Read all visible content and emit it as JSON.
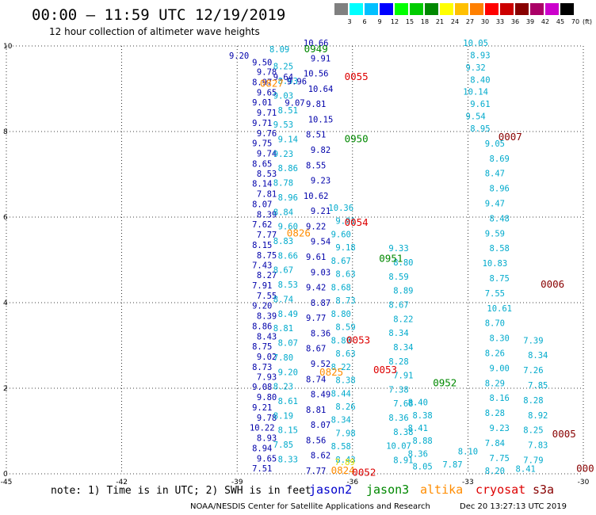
{
  "header": {
    "title": "00:00 – 11:59 UTC 12/19/2019",
    "subtitle": "12 hour collection of altimeter wave heights"
  },
  "colorbar": {
    "unit": "(ft)",
    "labels": [
      "3",
      "6",
      "9",
      "12",
      "15",
      "18",
      "21",
      "24",
      "27",
      "30",
      "33",
      "36",
      "39",
      "42",
      "45",
      "70"
    ],
    "colors": [
      "#808080",
      "#00ffff",
      "#00c0ff",
      "#0000ff",
      "#00ff00",
      "#00cc00",
      "#008800",
      "#ffff00",
      "#ffc000",
      "#ff8000",
      "#ff0000",
      "#cc0000",
      "#880000",
      "#aa0066",
      "#cc00cc",
      "#000000"
    ]
  },
  "chart_data": {
    "type": "scatter",
    "x_axis": {
      "range": [
        -45,
        -30
      ],
      "ticks": [
        "-45",
        "-42",
        "-39",
        "-36",
        "-33",
        "-30"
      ]
    },
    "y_axis": {
      "range": [
        0,
        10
      ],
      "ticks": [
        "0",
        "2",
        "4",
        "6",
        "8",
        "10"
      ]
    },
    "grid": true,
    "track_colors": {
      "navy": "#0000aa",
      "cyan": "#00aacc",
      "orange": "#ff8c00",
      "green": "#008800",
      "red": "#dd0000",
      "darkred": "#880000",
      "yellow": "#e0e000"
    },
    "tracks": [
      {
        "x": -38.35,
        "y": [
          9.55,
          9.32,
          9.08,
          8.84,
          8.61,
          8.37,
          8.13,
          7.89,
          7.66,
          7.42,
          7.18,
          6.94,
          6.71,
          6.47,
          6.23,
          5.99,
          5.76,
          5.52,
          5.28,
          5.04,
          4.81,
          4.57,
          4.33,
          4.09,
          3.86,
          3.62,
          3.38,
          3.14,
          2.91,
          2.67,
          2.43,
          2.19,
          1.96,
          1.72,
          1.48,
          1.24,
          1.01,
          0.77,
          0.53,
          0.29,
          0.06
        ],
        "values": [
          "9.50",
          "9.78",
          "8.97",
          "9.65",
          "9.01",
          "9.71",
          "9.71",
          "9.76",
          "9.75",
          "9.74",
          "8.65",
          "8.53",
          "8.14",
          "7.81",
          "8.07",
          "8.39",
          "7.62",
          "7.77",
          "8.15",
          "8.75",
          "7.43",
          "8.27",
          "7.91",
          "7.55",
          "9.20",
          "8.39",
          "8.86",
          "8.43",
          "8.75",
          "9.02",
          "8.73",
          "7.93",
          "9.08",
          "9.80",
          "9.21",
          "9.78",
          "10.22",
          "8.93",
          "8.94",
          "9.65",
          "7.51"
        ],
        "color": "navy"
      },
      {
        "x": -37.8,
        "y": [
          9.45,
          9.11,
          8.77,
          8.43,
          8.09,
          7.75,
          7.41,
          7.07,
          6.73,
          6.39,
          6.05,
          5.71,
          5.37,
          5.03,
          4.69,
          4.35,
          4.01,
          3.67,
          3.33,
          2.99,
          2.65,
          2.31,
          1.97,
          1.63,
          1.29,
          0.95,
          0.61,
          0.27
        ],
        "values": [
          "8.25",
          "8.93",
          "9.03",
          "8.51",
          "9.53",
          "9.14",
          "9.23",
          "8.86",
          "8.78",
          "8.96",
          "8.84",
          "9.60",
          "8.83",
          "8.66",
          "8.67",
          "8.53",
          "8.74",
          "8.49",
          "8.81",
          "8.07",
          "7.80",
          "9.20",
          "8.23",
          "8.61",
          "8.19",
          "8.15",
          "7.85",
          "8.33"
        ],
        "color": "cyan"
      },
      {
        "x": -36.95,
        "y": [
          10.0,
          9.64,
          9.29,
          8.93,
          8.57,
          8.21,
          7.86,
          7.5,
          7.14,
          6.79,
          6.43,
          6.07,
          5.71,
          5.36,
          5.0,
          4.64,
          4.29,
          3.93,
          3.57,
          3.21,
          2.86,
          2.5,
          2.14,
          1.79,
          1.43,
          1.07,
          0.71,
          0.36,
          0.0
        ],
        "values": [
          "10.66",
          "9.91",
          "10.56",
          "10.64",
          "9.81",
          "10.15",
          "8.51",
          "9.82",
          "8.55",
          "9.23",
          "10.62",
          "9.21",
          "9.22",
          "9.54",
          "9.61",
          "9.03",
          "9.42",
          "8.87",
          "9.77",
          "8.36",
          "8.67",
          "9.52",
          "8.74",
          "8.49",
          "8.81",
          "8.07",
          "8.56",
          "8.62",
          "7.77"
        ],
        "color": "navy"
      },
      {
        "x": -36.3,
        "y": [
          6.15,
          5.84,
          5.53,
          5.22,
          4.91,
          4.6,
          4.29,
          3.98,
          3.67,
          3.36,
          3.05,
          2.74,
          2.43,
          2.12,
          1.81,
          1.5,
          1.19,
          0.88,
          0.57,
          0.26
        ],
        "values": [
          "10.36",
          "9.91",
          "9.60",
          "9.18",
          "8.67",
          "8.63",
          "8.68",
          "8.73",
          "8.80",
          "8.59",
          "8.89",
          "8.63",
          "8.22",
          "8.38",
          "8.44",
          "8.26",
          "8.34",
          "7.98",
          "8.58",
          "8.43"
        ],
        "color": "cyan"
      },
      {
        "x": -34.8,
        "y": [
          5.2,
          4.87,
          4.54,
          4.21,
          3.88,
          3.55,
          3.22,
          2.89,
          2.56,
          2.23,
          1.9,
          1.57,
          1.24,
          0.91,
          0.58,
          0.25
        ],
        "values": [
          "9.33",
          "8.80",
          "8.59",
          "8.89",
          "8.67",
          "8.22",
          "8.34",
          "8.34",
          "8.28",
          "7.91",
          "7.38",
          "7.68",
          "8.36",
          "8.38",
          "10.07",
          "8.91"
        ],
        "color": "cyan"
      },
      {
        "x": -34.3,
        "y": [
          1.6,
          1.3,
          1.0,
          0.7,
          0.4,
          0.1
        ],
        "values": [
          "8.40",
          "8.38",
          "8.41",
          "8.88",
          "8.36",
          "8.05"
        ],
        "color": "cyan"
      },
      {
        "x": -32.8,
        "y": [
          10.0,
          9.71,
          9.43,
          9.14,
          8.86,
          8.57,
          8.29,
          8.0
        ],
        "values": [
          "10.05",
          "8.93",
          "9.32",
          "8.40",
          "10.14",
          "9.61",
          "9.54",
          "8.95"
        ],
        "color": "cyan"
      },
      {
        "x": -32.3,
        "y": [
          7.65,
          7.3,
          6.95,
          6.6,
          6.25,
          5.9,
          5.55,
          5.2,
          4.85,
          4.5,
          4.15,
          3.8,
          3.45,
          3.1,
          2.75,
          2.4,
          2.05,
          1.7,
          1.35,
          1.0,
          0.65,
          0.3,
          0.0
        ],
        "values": [
          "9.05",
          "8.69",
          "8.47",
          "8.96",
          "9.47",
          "8.48",
          "9.59",
          "8.58",
          "10.83",
          "8.75",
          "7.55",
          "10.61",
          "8.70",
          "8.30",
          "8.26",
          "9.00",
          "8.29",
          "8.16",
          "8.28",
          "9.23",
          "7.84",
          "7.75",
          "8.20"
        ],
        "color": "cyan"
      },
      {
        "x": -31.3,
        "y": [
          3.05,
          2.7,
          2.35,
          2.0,
          1.65,
          1.3,
          0.95,
          0.6,
          0.25
        ],
        "values": [
          "7.39",
          "8.34",
          "7.26",
          "7.85",
          "8.28",
          "8.92",
          "8.25",
          "7.83",
          "7.79"
        ],
        "color": "cyan"
      }
    ],
    "scattered_values": [
      {
        "x": -38.95,
        "y": 9.7,
        "v": "9.20",
        "color": "navy"
      },
      {
        "x": -37.9,
        "y": 9.85,
        "v": "8.09",
        "color": "cyan"
      },
      {
        "x": -37.8,
        "y": 9.2,
        "v": "9.64",
        "color": "navy"
      },
      {
        "x": -37.45,
        "y": 9.1,
        "v": "9.96",
        "color": "navy"
      },
      {
        "x": -37.5,
        "y": 8.6,
        "v": "9.07",
        "color": "navy"
      },
      {
        "x": -33.4,
        "y": 0.15,
        "v": "7.87",
        "color": "cyan"
      },
      {
        "x": -33.0,
        "y": 0.45,
        "v": "8.10",
        "color": "cyan"
      },
      {
        "x": -31.5,
        "y": 0.05,
        "v": "8.41",
        "color": "cyan"
      },
      {
        "x": -36.2,
        "y": 0.2,
        "v": "7.89",
        "color": "yellow"
      }
    ],
    "pass_labels": [
      {
        "text": "0949",
        "x": -36.95,
        "y": 9.85,
        "color": "green"
      },
      {
        "text": "0055",
        "x": -35.9,
        "y": 9.2,
        "color": "red"
      },
      {
        "text": "0827",
        "x": -38.1,
        "y": 9.05,
        "color": "orange"
      },
      {
        "text": "0007",
        "x": -31.9,
        "y": 7.8,
        "color": "darkred"
      },
      {
        "text": "0950",
        "x": -35.9,
        "y": 7.75,
        "color": "green"
      },
      {
        "text": "0054",
        "x": -35.9,
        "y": 5.8,
        "color": "red"
      },
      {
        "text": "0826",
        "x": -37.4,
        "y": 5.55,
        "color": "orange"
      },
      {
        "text": "0951",
        "x": -35.0,
        "y": 4.95,
        "color": "green"
      },
      {
        "text": "0006",
        "x": -30.8,
        "y": 4.35,
        "color": "darkred"
      },
      {
        "text": "0053",
        "x": -35.85,
        "y": 3.05,
        "color": "red"
      },
      {
        "text": "0825",
        "x": -36.55,
        "y": 2.3,
        "color": "orange"
      },
      {
        "text": "0053",
        "x": -35.15,
        "y": 2.35,
        "color": "red"
      },
      {
        "text": "0952",
        "x": -33.6,
        "y": 2.05,
        "color": "green"
      },
      {
        "text": "0005",
        "x": -30.5,
        "y": 0.85,
        "color": "darkred"
      },
      {
        "text": "0824",
        "x": -36.25,
        "y": 0.0,
        "color": "orange"
      },
      {
        "text": "0052",
        "x": -35.7,
        "y": -0.05,
        "color": "red"
      },
      {
        "text": "000",
        "x": -29.95,
        "y": 0.05,
        "color": "darkred"
      }
    ]
  },
  "footer": {
    "note": "note: 1) Time is in UTC; 2) SWH is in feet",
    "legend": [
      {
        "name": "jason2",
        "color": "#0000cc"
      },
      {
        "name": "jason3",
        "color": "#008800"
      },
      {
        "name": "altika",
        "color": "#ff8c00"
      },
      {
        "name": "cryosat",
        "color": "#dd0000"
      },
      {
        "name": "s3a",
        "color": "#880000"
      }
    ],
    "credit": "NOAA/NESDIS Center for Satellite Applications and Research",
    "timestamp": "Dec 20 13:27:13 UTC 2019"
  }
}
